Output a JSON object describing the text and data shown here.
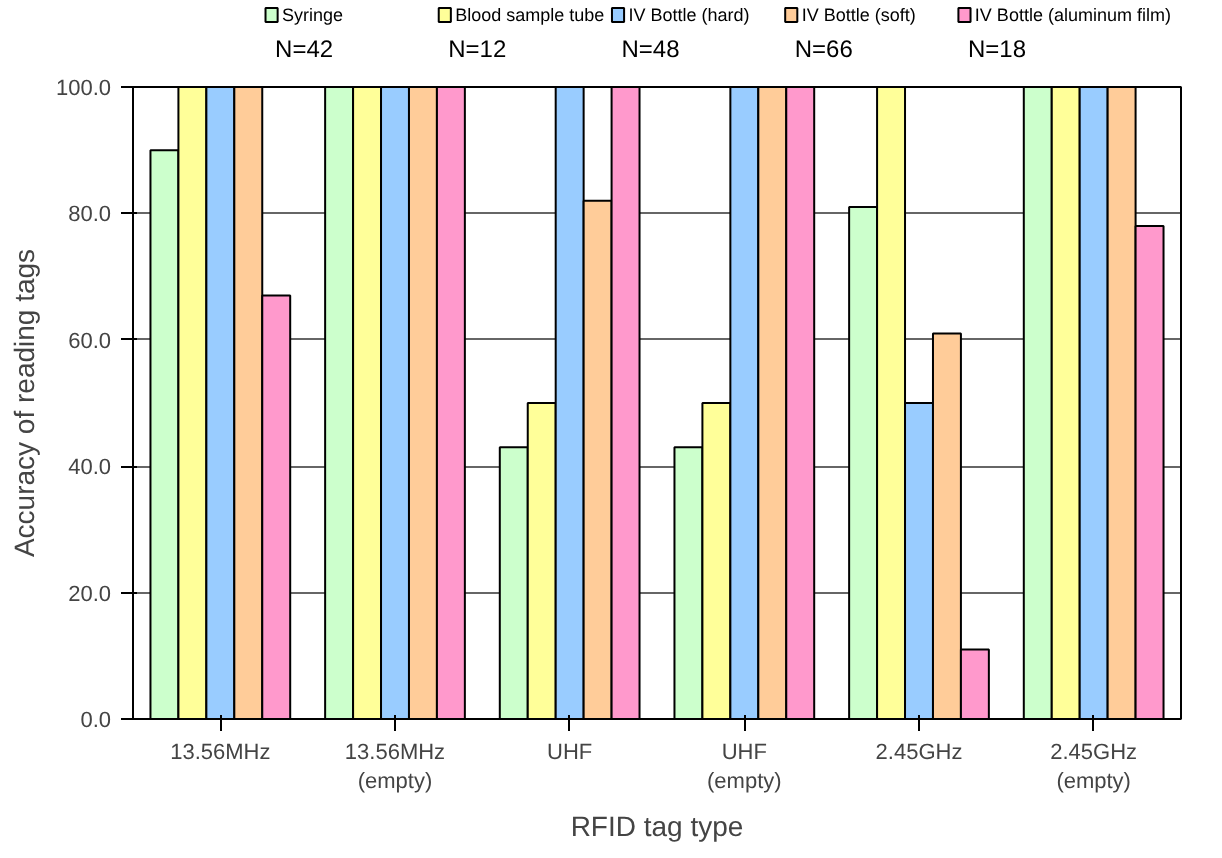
{
  "chart_data": {
    "type": "bar",
    "xlabel": "RFID tag type",
    "ylabel": "Accuracy of reading tags",
    "categories": [
      "13.56MHz",
      "13.56MHz\n(empty)",
      "UHF",
      "UHF\n(empty)",
      "2.45GHz",
      "2.45GHz\n(empty)"
    ],
    "series": [
      {
        "name": "Syringe",
        "color": "#ccffcc",
        "values": [
          90,
          100,
          43,
          43,
          81,
          100
        ]
      },
      {
        "name": "Blood sample tube",
        "color": "#ffff99",
        "values": [
          100,
          100,
          50,
          50,
          100,
          100
        ]
      },
      {
        "name": "IV  Bottle (hard)",
        "color": "#99ccff",
        "values": [
          100,
          100,
          100,
          100,
          50,
          100
        ]
      },
      {
        "name": "IV Bottle (soft)",
        "color": "#ffcc99",
        "values": [
          100,
          100,
          82,
          100,
          61,
          100
        ]
      },
      {
        "name": "IV Bottle (aluminum film)",
        "color": "#ff99cc",
        "values": [
          67,
          100,
          100,
          100,
          11,
          78
        ]
      }
    ],
    "annotations": [
      "N=42",
      "N=12",
      "N=48",
      "N=66",
      "N=18"
    ],
    "ylim": [
      0,
      100
    ],
    "yticks": [
      {
        "value": 0,
        "label": "0.0"
      },
      {
        "value": 20,
        "label": "20.0"
      },
      {
        "value": 40,
        "label": "40.0"
      },
      {
        "value": 60,
        "label": "60.0"
      },
      {
        "value": 80,
        "label": "80.0"
      },
      {
        "value": 100,
        "label": "100.0"
      }
    ],
    "grid": "y",
    "legend": "top"
  }
}
